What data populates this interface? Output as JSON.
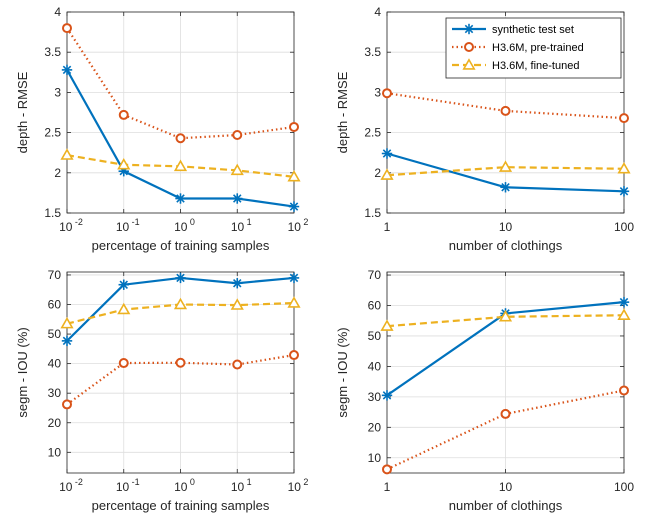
{
  "series_styles": [
    {
      "color": "#0072BD",
      "dash": "",
      "marker": "asterisk"
    },
    {
      "color": "#D95319",
      "dash": "1.5,3",
      "marker": "circle"
    },
    {
      "color": "#EDB120",
      "dash": "7,4",
      "marker": "triangle"
    }
  ],
  "legend": {
    "entries": [
      "synthetic test set",
      "H3.6M, pre-trained",
      "H3.6M, fine-tuned"
    ],
    "placement": "top-right of top-right panel"
  },
  "chart_data": [
    {
      "type": "line",
      "xlabel": "percentage of training samples",
      "ylabel": "depth - RMSE",
      "x": [
        -2,
        -1,
        0,
        1,
        2
      ],
      "x_tick_labels": [
        {
          "base": "10",
          "exp": "-2"
        },
        {
          "base": "10",
          "exp": "-1"
        },
        {
          "base": "10",
          "exp": "0"
        },
        {
          "base": "10",
          "exp": "1"
        },
        {
          "base": "10",
          "exp": "2"
        }
      ],
      "ylim": [
        1.5,
        4
      ],
      "y_ticks": [
        1.5,
        2,
        2.5,
        3,
        3.5,
        4
      ],
      "y_tick_labels": [
        "1.5",
        "2",
        "2.5",
        "3",
        "3.5",
        "4"
      ],
      "series": [
        {
          "name": "synthetic test set",
          "values": [
            3.28,
            2.02,
            1.68,
            1.68,
            1.58
          ]
        },
        {
          "name": "H3.6M, pre-trained",
          "values": [
            3.8,
            2.72,
            2.43,
            2.47,
            2.57
          ]
        },
        {
          "name": "H3.6M, fine-tuned",
          "values": [
            2.22,
            2.1,
            2.08,
            2.03,
            1.95
          ]
        }
      ],
      "grid": true
    },
    {
      "type": "line",
      "xlabel": "number of clothings",
      "ylabel": "depth - RMSE",
      "x": [
        0,
        1,
        2
      ],
      "x_tick_labels": [
        {
          "base": "1"
        },
        {
          "base": "10"
        },
        {
          "base": "100"
        }
      ],
      "ylim": [
        1.5,
        4
      ],
      "y_ticks": [
        1.5,
        2,
        2.5,
        3,
        3.5,
        4
      ],
      "y_tick_labels": [
        "1.5",
        "2",
        "2.5",
        "3",
        "3.5",
        "4"
      ],
      "series": [
        {
          "name": "synthetic test set",
          "values": [
            2.24,
            1.82,
            1.77
          ]
        },
        {
          "name": "H3.6M, pre-trained",
          "values": [
            2.99,
            2.77,
            2.68
          ]
        },
        {
          "name": "H3.6M, fine-tuned",
          "values": [
            1.97,
            2.07,
            2.05
          ]
        }
      ],
      "grid": true,
      "legend": true
    },
    {
      "type": "line",
      "xlabel": "percentage of training samples",
      "ylabel": "segm - IOU (%)",
      "x": [
        -2,
        -1,
        0,
        1,
        2
      ],
      "x_tick_labels": [
        {
          "base": "10",
          "exp": "-2"
        },
        {
          "base": "10",
          "exp": "-1"
        },
        {
          "base": "10",
          "exp": "0"
        },
        {
          "base": "10",
          "exp": "1"
        },
        {
          "base": "10",
          "exp": "2"
        }
      ],
      "ylim": [
        3,
        71
      ],
      "y_ticks": [
        10,
        20,
        30,
        40,
        50,
        60,
        70
      ],
      "y_tick_labels": [
        "10",
        "20",
        "30",
        "40",
        "50",
        "60",
        "70"
      ],
      "series": [
        {
          "name": "synthetic test set",
          "values": [
            47.7,
            66.7,
            69,
            67.2,
            69
          ]
        },
        {
          "name": "H3.6M, pre-trained",
          "values": [
            26.2,
            40.2,
            40.3,
            39.7,
            42.9
          ]
        },
        {
          "name": "H3.6M, fine-tuned",
          "values": [
            53.5,
            58.3,
            60,
            59.8,
            60.5
          ]
        }
      ],
      "grid": true
    },
    {
      "type": "line",
      "xlabel": "number of clothings",
      "ylabel": "segm - IOU (%)",
      "x": [
        0,
        1,
        2
      ],
      "x_tick_labels": [
        {
          "base": "1"
        },
        {
          "base": "10"
        },
        {
          "base": "100"
        }
      ],
      "ylim": [
        5,
        71
      ],
      "y_ticks": [
        10,
        20,
        30,
        40,
        50,
        60,
        70
      ],
      "y_tick_labels": [
        "10",
        "20",
        "30",
        "40",
        "50",
        "60",
        "70"
      ],
      "series": [
        {
          "name": "synthetic test set",
          "values": [
            30.5,
            57.4,
            61.1
          ]
        },
        {
          "name": "H3.6M, pre-trained",
          "values": [
            6.2,
            24.4,
            32.1
          ]
        },
        {
          "name": "H3.6M, fine-tuned",
          "values": [
            53.2,
            56.3,
            56.8
          ]
        }
      ],
      "grid": true
    }
  ]
}
